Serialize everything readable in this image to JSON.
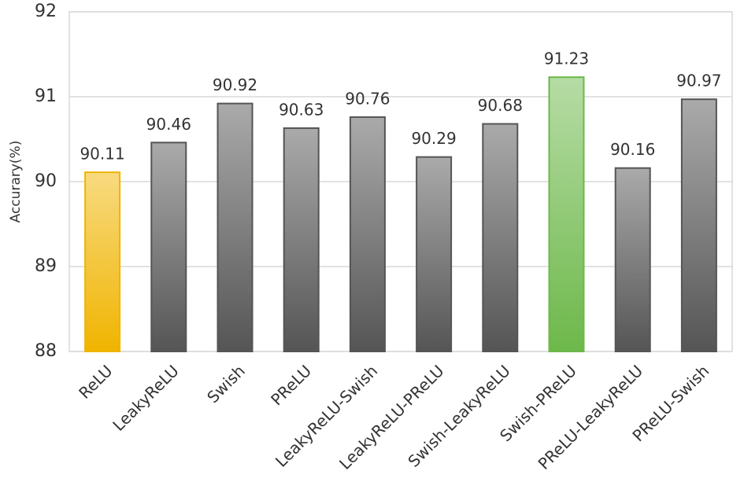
{
  "chart_data": {
    "type": "bar",
    "y_label": "Accurary(%)",
    "categories": [
      "ReLU",
      "LeakyReLU",
      "Swish",
      "PReLU",
      "LeakyReLU-Swish",
      "LeakyReLU-PReLU",
      "Swish-LeakyReLU",
      "Swish-PReLU",
      "PReLU-LeakyReLU",
      "PReLU-Swish"
    ],
    "values": [
      90.11,
      90.46,
      90.92,
      90.63,
      90.76,
      90.29,
      90.68,
      91.23,
      90.16,
      90.97
    ],
    "colors": [
      "#f0b400",
      "#555555",
      "#555555",
      "#555555",
      "#555555",
      "#555555",
      "#555555",
      "#6db84a",
      "#555555",
      "#555555"
    ],
    "ylim": [
      88,
      92
    ],
    "yticks": [
      88,
      89,
      90,
      91,
      92
    ],
    "grid": true
  }
}
